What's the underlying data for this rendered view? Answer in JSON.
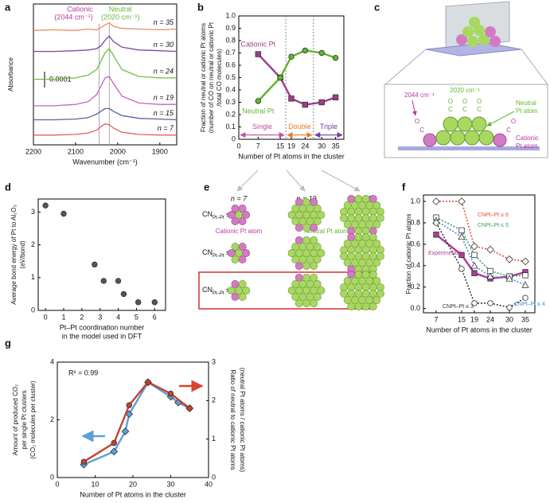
{
  "panel_labels": [
    "a",
    "b",
    "c",
    "d",
    "e",
    "f",
    "g"
  ],
  "chart_data": [
    {
      "type": "line",
      "xlabel": "Wavenumber (cm⁻¹)",
      "ylabel": "Absorbance",
      "x": [
        2200,
        2150,
        2100,
        2070,
        2050,
        2040,
        2030,
        2020,
        2010,
        1990,
        1950,
        1900,
        1860
      ],
      "xlim": [
        2200,
        1860
      ],
      "xticks": [
        2200,
        2100,
        2000,
        1900
      ],
      "ylim": [
        0.6,
        10.7
      ],
      "reference_lines": [
        2044,
        2020
      ],
      "annotations": [
        [
          "Cationic",
          "(2044 cm⁻¹)"
        ],
        [
          "Neutral",
          "(2020 cm⁻¹)"
        ]
      ],
      "annotation_colors": [
        "#b8389a",
        "#6cb52e"
      ],
      "scale_bar_label": "0.0001",
      "series": [
        {
          "name": "n = 35",
          "color": "#f08a5d",
          "values": [
            8.8,
            8.85,
            8.8,
            8.9,
            8.85,
            9.0,
            9.2,
            9.35,
            9.1,
            8.95,
            8.9,
            8.85,
            8.9
          ]
        },
        {
          "name": "n = 30",
          "color": "#7a4aa0",
          "values": [
            7.3,
            7.3,
            7.35,
            7.4,
            7.5,
            7.7,
            8.1,
            8.4,
            8.0,
            7.6,
            7.4,
            7.35,
            7.3
          ]
        },
        {
          "name": "n = 24",
          "color": "#6cbf3c",
          "values": [
            5.3,
            5.3,
            5.4,
            5.6,
            6.0,
            6.6,
            7.2,
            7.5,
            7.0,
            6.0,
            5.5,
            5.4,
            5.4
          ]
        },
        {
          "name": "n = 19",
          "color": "#c466b4",
          "values": [
            3.4,
            3.4,
            3.5,
            3.7,
            4.2,
            4.8,
            5.4,
            5.5,
            5.0,
            4.1,
            3.6,
            3.5,
            3.5
          ]
        },
        {
          "name": "n = 15",
          "color": "#5462a8",
          "values": [
            2.4,
            2.4,
            2.45,
            2.55,
            2.8,
            3.0,
            3.2,
            3.2,
            3.0,
            2.7,
            2.5,
            2.45,
            2.4
          ]
        },
        {
          "name": "n = 7",
          "color": "#e46060",
          "values": [
            1.3,
            1.3,
            1.35,
            1.45,
            1.65,
            1.9,
            2.1,
            2.05,
            1.8,
            1.5,
            1.35,
            1.3,
            1.3
          ]
        }
      ]
    },
    {
      "type": "line",
      "xlabel": "Number of Pt atoms in the cluster",
      "ylabel": [
        "Fraction of neutral or cationic Pt atoms",
        "(number of CO on neutral or cationic Pt",
        "/total CO molecules)"
      ],
      "x": [
        7,
        15,
        19,
        24,
        30,
        35
      ],
      "xlim": [
        0,
        38
      ],
      "xticks": [
        0,
        7,
        15,
        19,
        24,
        30,
        35
      ],
      "ylim": [
        0,
        1
      ],
      "yticks": [
        0,
        0.1,
        0.2,
        0.3,
        0.4,
        0.5,
        0.6,
        0.7,
        0.8,
        0.9,
        {
          "value": 1,
          "label": "1.0"
        }
      ],
      "boundaries": [
        17,
        27
      ],
      "regions": [
        {
          "label": "Single",
          "color": "#c050a8"
        },
        {
          "label": "Double",
          "color": "#e87a20"
        },
        {
          "label": "Triple",
          "color": "#7040a0"
        }
      ],
      "series": [
        {
          "name": "Cationic Pt",
          "color": "#9c3d8f",
          "marker": "square",
          "values": [
            0.69,
            0.5,
            0.33,
            0.28,
            0.3,
            0.34
          ]
        },
        {
          "name": "Neutral Pt",
          "color": "#5fb52e",
          "marker": "circle",
          "values": [
            0.31,
            0.5,
            0.67,
            0.72,
            0.7,
            0.66
          ]
        }
      ]
    },
    {
      "type": "scatter",
      "xlabel": [
        "Pt–Pt coordination number",
        "in the model used in DFT"
      ],
      "ylabel": [
        "Average bond energy of Pt to Al₂O₃",
        "(eV/bond)"
      ],
      "xlim": [
        -0.4,
        6.6
      ],
      "xticks": [
        0,
        1,
        2,
        3,
        4,
        5,
        6
      ],
      "ylim": [
        0,
        3.4
      ],
      "yticks": [
        0,
        1,
        2,
        3
      ],
      "series": [
        {
          "color": "#555555",
          "marker": "circle",
          "x": [
            0,
            1,
            2.7,
            3.2,
            4,
            4.3,
            5.1,
            6
          ],
          "values": [
            3.2,
            2.95,
            1.4,
            0.9,
            0.9,
            0.5,
            0.25,
            0.25
          ]
        }
      ]
    },
    {
      "type": "line",
      "xlabel": "Number of Pt atoms in the cluster",
      "ylabel": "Fraction of cationic Pt atoms",
      "x": [
        7,
        15,
        19,
        24,
        30,
        35
      ],
      "xlim": [
        3,
        38
      ],
      "xticks": [
        7,
        15,
        19,
        24,
        30,
        35
      ],
      "ylim": [
        -0.04,
        1.06
      ],
      "yticks": [
        {
          "value": 0,
          "label": "0.0"
        },
        0.2,
        0.4,
        0.6,
        0.8,
        {
          "value": 1,
          "label": "1.0"
        }
      ],
      "series": [
        {
          "name": "Experimental",
          "color": "#b03a9c",
          "marker": "square",
          "values": [
            0.69,
            0.5,
            0.33,
            0.28,
            0.3,
            0.34
          ]
        },
        {
          "name": "CNPt–Pt ≤ 6",
          "color": "#e8503a",
          "marker": "diamond",
          "dash": true,
          "open": true,
          "values": [
            1.0,
            1.0,
            0.58,
            0.55,
            0.46,
            0.44
          ]
        },
        {
          "name": "CNPt–Pt ≤ 5",
          "color": "#3aa05a",
          "marker": "square",
          "dash": true,
          "open": true,
          "values": [
            0.85,
            0.73,
            0.5,
            0.35,
            0.3,
            0.31
          ]
        },
        {
          "name": "CNPt–Pt ≤ 4",
          "color": "#4a8ad0",
          "marker": "triangle",
          "dash": true,
          "open": true,
          "values": [
            0.82,
            0.67,
            0.4,
            0.3,
            0.28,
            0.22
          ]
        },
        {
          "name": "CNPt–Pt ≤ 3",
          "color": "#333333",
          "marker": "circle",
          "dash": true,
          "open": true,
          "values": [
            0.8,
            0.37,
            0.05,
            0.05,
            0.01,
            0.1
          ]
        }
      ]
    },
    {
      "type": "line",
      "xlabel": "Number of Pt atoms in the cluster",
      "ylabel": [
        "Amount of produced CO₂",
        "per single Pt clusters",
        "(CO₂ molecules per cluster)"
      ],
      "y2label": [
        "Ratio of neutral to cationic Pt atoms",
        "(neutral Pt atoms / cationic Pt atoms)"
      ],
      "xlim": [
        0,
        40
      ],
      "xticks": [
        0,
        10,
        20,
        30,
        40
      ],
      "ylim": [
        0,
        4
      ],
      "yticks": [
        0,
        2,
        4
      ],
      "y2lim": [
        0,
        3
      ],
      "y2ticks": [
        0,
        1,
        2,
        3
      ],
      "annotations": [
        "R² = 0.99"
      ],
      "series": [
        {
          "color": "#5aa0d8",
          "marker": "diamond",
          "x": [
            7,
            15,
            18,
            19,
            24,
            30,
            32,
            35
          ],
          "values": [
            0.45,
            0.9,
            1.6,
            2.2,
            3.3,
            2.8,
            2.6,
            2.4
          ]
        },
        {
          "color": "#c8402c",
          "marker": "circle",
          "axis": "y2",
          "x": [
            7,
            15,
            19,
            24,
            30,
            35
          ],
          "values": [
            0.41,
            0.9,
            1.88,
            2.48,
            2.18,
            1.8
          ]
        }
      ]
    }
  ],
  "diagrams": {
    "c": {
      "co_2044": "2044 cm⁻¹",
      "co_2020": "2020 cm⁻¹",
      "neutral": [
        "Neutral",
        "Pt atom"
      ],
      "cationic": [
        "Cationic",
        "Pt atom"
      ],
      "O": "O",
      "C": "C"
    },
    "e": {
      "columns": [
        "n = 7",
        "n = 19",
        "n = 30"
      ],
      "rows": [
        [
          "CN",
          "Pt–Pt",
          " ≤ 3"
        ],
        [
          "CN",
          "Pt–Pt",
          " ≤ 4"
        ],
        [
          "CN",
          "Pt–Pt",
          " ≤ 5"
        ]
      ],
      "cationic_label": "Cationic Pt atom",
      "neutral_label": "Neutral Pt atom"
    }
  }
}
